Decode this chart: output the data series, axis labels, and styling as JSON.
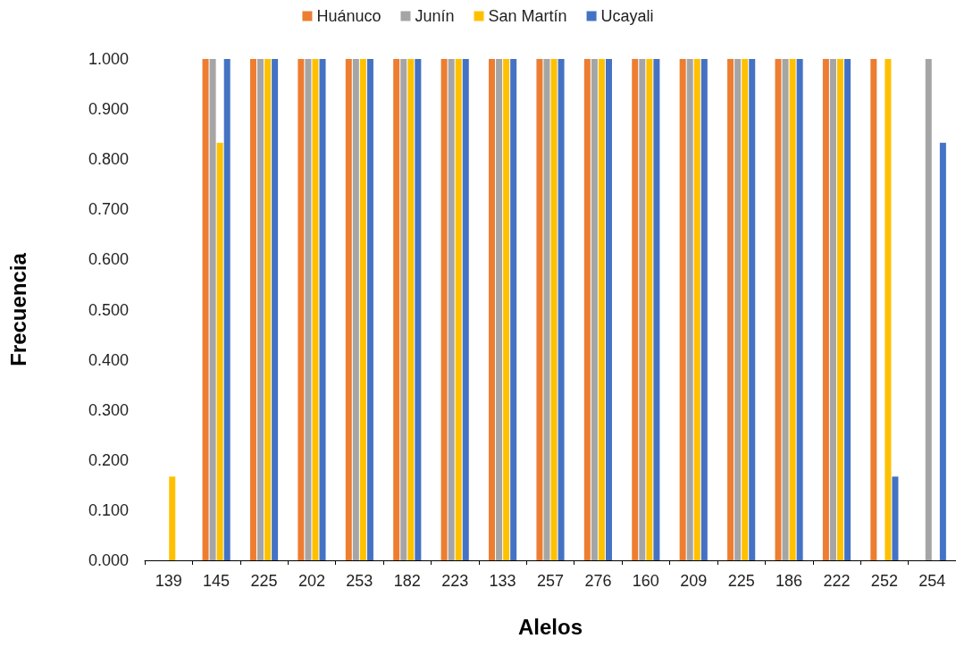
{
  "chart_data": {
    "type": "bar",
    "xlabel": "Alelos",
    "ylabel": "Frecuencia",
    "categories": [
      "139",
      "145",
      "225",
      "202",
      "253",
      "182",
      "223",
      "133",
      "257",
      "276",
      "160",
      "209",
      "225",
      "186",
      "222",
      "252",
      "254"
    ],
    "series": [
      {
        "name": "Huánuco",
        "color": "#ed7d31",
        "values": [
          0,
          1,
          1,
          1,
          1,
          1,
          1,
          1,
          1,
          1,
          1,
          1,
          1,
          1,
          1,
          1,
          0
        ]
      },
      {
        "name": "Junín",
        "color": "#a5a5a5",
        "values": [
          0,
          1,
          1,
          1,
          1,
          1,
          1,
          1,
          1,
          1,
          1,
          1,
          1,
          1,
          1,
          0,
          1
        ]
      },
      {
        "name": "San Martín",
        "color": "#ffc000",
        "values": [
          0.167,
          0.833,
          1,
          1,
          1,
          1,
          1,
          1,
          1,
          1,
          1,
          1,
          1,
          1,
          1,
          1,
          0
        ]
      },
      {
        "name": "Ucayali",
        "color": "#4472c4",
        "values": [
          0,
          1,
          1,
          1,
          1,
          1,
          1,
          1,
          1,
          1,
          1,
          1,
          1,
          1,
          1,
          0.167,
          0.833
        ]
      }
    ],
    "ylim": [
      0,
      1
    ],
    "yticks": [
      {
        "value": 0,
        "label": "0.000"
      },
      {
        "value": 0.1,
        "label": "0.100"
      },
      {
        "value": 0.2,
        "label": "0.200"
      },
      {
        "value": 0.3,
        "label": "0.300"
      },
      {
        "value": 0.4,
        "label": "0.400"
      },
      {
        "value": 0.5,
        "label": "0.500"
      },
      {
        "value": 0.6,
        "label": "0.600"
      },
      {
        "value": 0.7,
        "label": "0.700"
      },
      {
        "value": 0.8,
        "label": "0.800"
      },
      {
        "value": 0.9,
        "label": "0.900"
      },
      {
        "value": 1,
        "label": "1.000"
      }
    ],
    "grid": false,
    "legend": "top"
  }
}
